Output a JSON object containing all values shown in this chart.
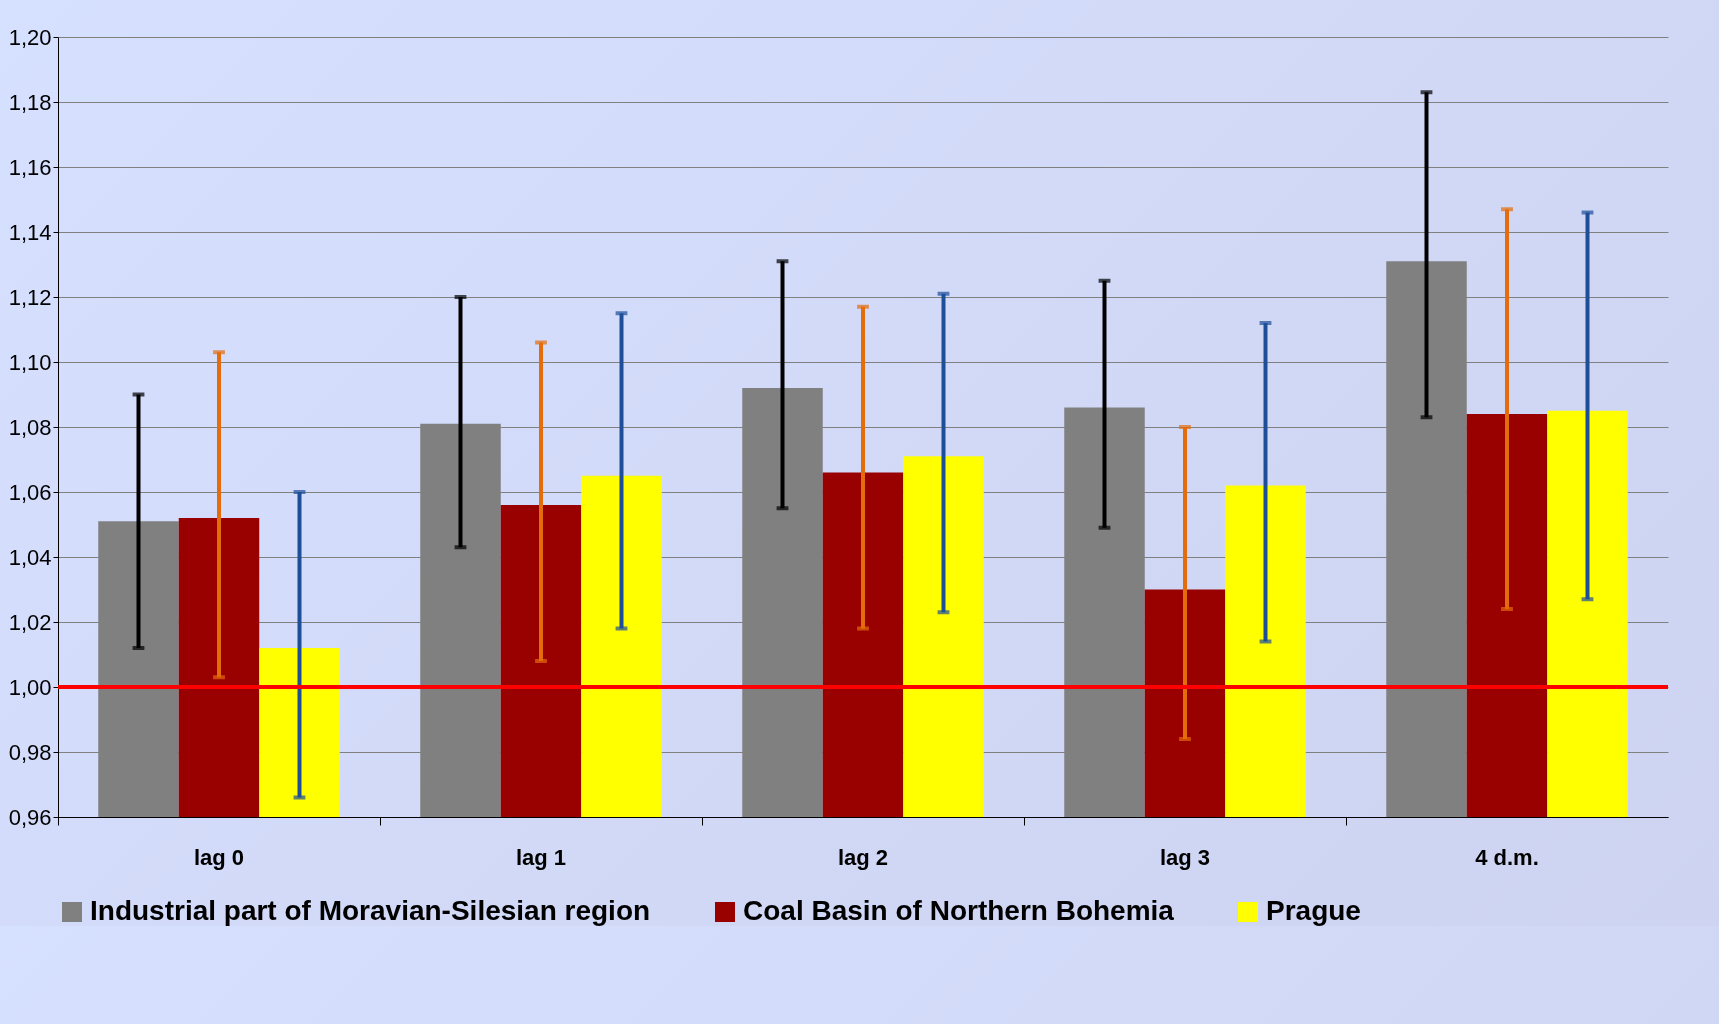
{
  "chart_data": {
    "type": "bar",
    "categories": [
      "lag 0",
      "lag 1",
      "lag 2",
      "lag 3",
      "4 d.m."
    ],
    "series": [
      {
        "name": "Industrial part of Moravian-Silesian region",
        "color": "#808080",
        "values": [
          1.051,
          1.081,
          1.092,
          1.086,
          1.131
        ],
        "errors": [
          [
            1.012,
            1.09
          ],
          [
            1.043,
            1.12
          ],
          [
            1.055,
            1.131
          ],
          [
            1.049,
            1.125
          ],
          [
            1.083,
            1.183
          ]
        ]
      },
      {
        "name": "Coal Basin of Northern Bohemia",
        "color": "#990000",
        "values": [
          1.052,
          1.056,
          1.066,
          1.03,
          1.084
        ],
        "errors": [
          [
            1.003,
            1.103
          ],
          [
            1.008,
            1.106
          ],
          [
            1.018,
            1.117
          ],
          [
            0.984,
            1.08
          ],
          [
            1.024,
            1.147
          ]
        ]
      },
      {
        "name": "Prague",
        "color": "#ffff00",
        "values": [
          1.012,
          1.065,
          1.071,
          1.062,
          1.085
        ],
        "errors": [
          [
            0.966,
            1.06
          ],
          [
            1.018,
            1.115
          ],
          [
            1.023,
            1.121
          ],
          [
            1.014,
            1.112
          ],
          [
            1.027,
            1.146
          ]
        ]
      }
    ],
    "ylim": [
      0.96,
      1.2
    ],
    "yticks": [
      {
        "value": 0.96,
        "label": "0,96"
      },
      {
        "value": 0.98,
        "label": "0,98"
      },
      {
        "value": 1.0,
        "label": "1,00"
      },
      {
        "value": 1.02,
        "label": "1,02"
      },
      {
        "value": 1.04,
        "label": "1,04"
      },
      {
        "value": 1.06,
        "label": "1,06"
      },
      {
        "value": 1.08,
        "label": "1,08"
      },
      {
        "value": 1.1,
        "label": "1,10"
      },
      {
        "value": 1.12,
        "label": "1,12"
      },
      {
        "value": 1.14,
        "label": "1,14"
      },
      {
        "value": 1.16,
        "label": "1,16"
      },
      {
        "value": 1.18,
        "label": "1,18"
      },
      {
        "value": 1.2,
        "label": "1,20"
      }
    ],
    "ref_lines": [
      {
        "axis": "y",
        "value": 1.0,
        "color": "#ff0000"
      }
    ],
    "grid": "y",
    "legend": "bottom"
  }
}
